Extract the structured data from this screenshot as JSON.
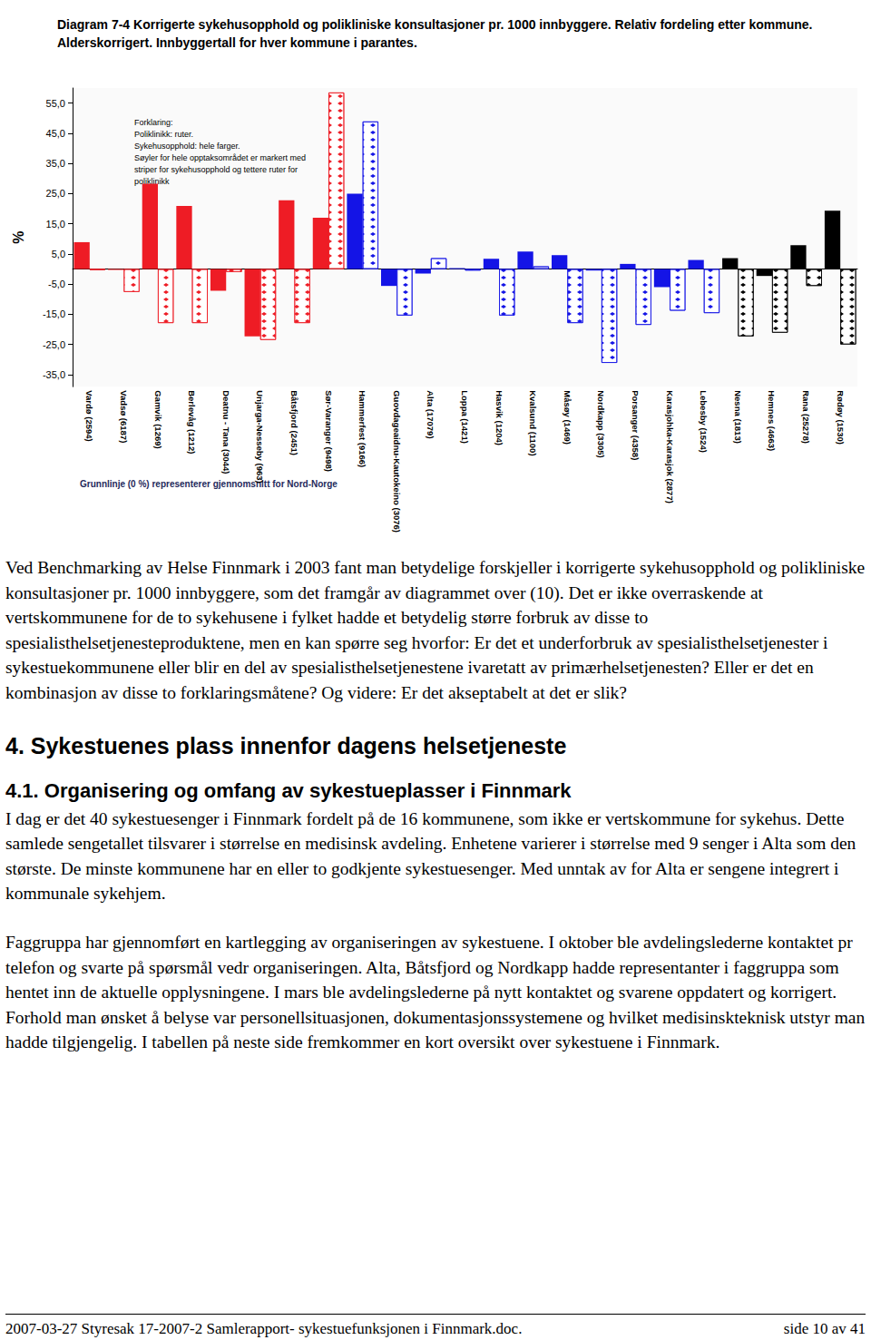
{
  "chart_data": {
    "type": "bar",
    "title": "Diagram 7-4 Korrigerte sykehusopphold og polikliniske konsultasjoner pr. 1000 innbyggere. Relativ fordeling etter kommune. Alderskorrigert. Innbyggertall for hver kommune i parantes.",
    "y_label": "%",
    "categories": [
      "Vardø (2594)",
      "Vadsø (6187)",
      "Gamvik (1269)",
      "Berlevåg (1212)",
      "Deatnu - Tana (3044)",
      "Unjarga-Nesseby (963)",
      "Båtsfjord (2451)",
      "Sør-Varanger (9498)",
      "Hammerfest (9166)",
      "Guovdageaidnu-Kautokeino (3076)",
      "Alta (17079)",
      "Loppa (1421)",
      "Hasvik (1204)",
      "Kvalsund (1100)",
      "Måsøy (1469)",
      "Nordkapp (3305)",
      "Porsanger (4358)",
      "Karasjohka-Karasjok (2877)",
      "Lebesby (1524)",
      "Nesna (1813)",
      "Hemnes (4663)",
      "Rana (25278)",
      "Rødøy (1530)"
    ],
    "series": [
      {
        "values": [
          8.9,
          -0.3,
          28.3,
          20.9,
          -7.2,
          -22.3,
          22.8,
          17.0,
          25.0,
          -5.6,
          -1.5,
          0.3,
          3.4,
          5.8,
          4.6,
          -0.5,
          1.7,
          -6.0,
          3.0,
          3.6,
          -2.3,
          7.9,
          19.3
        ],
        "colors": [
          "#ee1c25",
          "#ee1c25",
          "#ee1c25",
          "#ee1c25",
          "#ee1c25",
          "#ee1c25",
          "#ee1c25",
          "#ee1c25",
          "#1414e6",
          "#1414e6",
          "#1414e6",
          "#1414e6",
          "#1414e6",
          "#1414e6",
          "#1414e6",
          "#1414e6",
          "#1414e6",
          "#1414e6",
          "#1414e6",
          "#000000",
          "#000000",
          "#000000",
          "#000000"
        ]
      },
      {
        "values": [
          -0.3,
          -7.6,
          -17.9,
          -17.9,
          -1.0,
          -23.5,
          -17.9,
          58.5,
          48.9,
          -15.4,
          3.6,
          -0.5,
          -15.4,
          0.9,
          -17.9,
          -31.1,
          -18.5,
          -13.8,
          -14.6,
          -22.3,
          -21.1,
          -5.6,
          -25.0
        ],
        "colors": [
          "#ee1c25",
          "#ee1c25",
          "#ee1c25",
          "#ee1c25",
          "#ee1c25",
          "#ee1c25",
          "#ee1c25",
          "#ee1c25",
          "#1414e6",
          "#1414e6",
          "#1414e6",
          "#1414e6",
          "#1414e6",
          "#1414e6",
          "#1414e6",
          "#1414e6",
          "#1414e6",
          "#1414e6",
          "#1414e6",
          "#000000",
          "#000000",
          "#000000",
          "#000000"
        ],
        "marker": "diamond"
      }
    ],
    "ylim": [
      -39,
      60
    ],
    "yticks": [
      {
        "value": -35,
        "label": "-35,0"
      },
      {
        "value": -25,
        "label": "-25,0"
      },
      {
        "value": -15,
        "label": "-15,0"
      },
      {
        "value": -5,
        "label": "-5,0"
      },
      {
        "value": 5,
        "label": "5,0"
      },
      {
        "value": 15,
        "label": "15,0"
      },
      {
        "value": 25,
        "label": "25,0"
      },
      {
        "value": 35,
        "label": "35,0"
      },
      {
        "value": 45,
        "label": "45,0"
      },
      {
        "value": 55,
        "label": "55,0"
      }
    ],
    "grid": false,
    "annotations": [
      "Forklaring:\nPoliklinikk: ruter.\nSykehusopphold: hele farger.\nSøyler for hele opptaksområdet er markert med\nstriper for sykehusopphold og tettere ruter for\npoliklinikk",
      "Grunnlinje (0 %) representerer gjennomsnitt for Nord-Norge"
    ]
  },
  "document": {
    "body": [
      {
        "paragraph": "Ved Benchmarking av Helse Finnmark i 2003 fant man betydelige forskjeller i korrigerte sykehusopphold og polikliniske konsultasjoner pr. 1000 innbyggere, som det framgår av diagrammet over (10). Det er ikke overraskende at vertskommunene for de to sykehusene i fylket hadde et betydelig større forbruk av disse to spesialisthelsetjenesteproduktene, men en kan spørre seg hvorfor: Er det et underforbruk av spesialisthelsetjenester i sykestuekommunene eller blir en del av spesialisthelsetjenestene ivaretatt av primærhelsetjenesten? Eller er det en kombinasjon av disse to forklaringsmåtene? Og videre: Er det akseptabelt at det er slik?"
      },
      {
        "heading": "4. Sykestuenes plass innenfor dagens helsetjeneste"
      },
      {
        "subheading": "4.1. Organisering og omfang av sykestueplasser i Finnmark"
      },
      {
        "paragraph": "I dag er det 40 sykestuesenger i Finnmark fordelt på de 16 kommunene, som ikke er vertskommune for sykehus. Dette samlede sengetallet tilsvarer i størrelse en medisinsk avdeling. Enhetene varierer i størrelse med 9 senger i Alta som den største. De minste kommunene har en eller to godkjente sykestuesenger. Med unntak av for Alta er sengene integrert i kommunale sykehjem."
      },
      {
        "paragraph": "Faggruppa har gjennomført en kartlegging av organiseringen av sykestuene. I oktober ble avdelingslederne kontaktet pr telefon og svarte på spørsmål vedr organiseringen. Alta, Båtsfjord og Nordkapp hadde representanter i faggruppa som hentet inn de aktuelle opplysningene. I mars ble avdelingslederne på nytt kontaktet og svarene oppdatert og korrigert. Forhold man ønsket å belyse var personellsituasjonen, dokumentasjonssystemene og hvilket medisinskteknisk utstyr man hadde tilgjengelig.  I tabellen på neste side fremkommer en kort oversikt over sykestuene i Finnmark."
      }
    ],
    "footer": {
      "left": "2007-03-27 Styresak 17-2007-2 Samlerapport- sykestuefunksjonen i Finnmark.doc.",
      "right": "side 10 av 41"
    }
  }
}
